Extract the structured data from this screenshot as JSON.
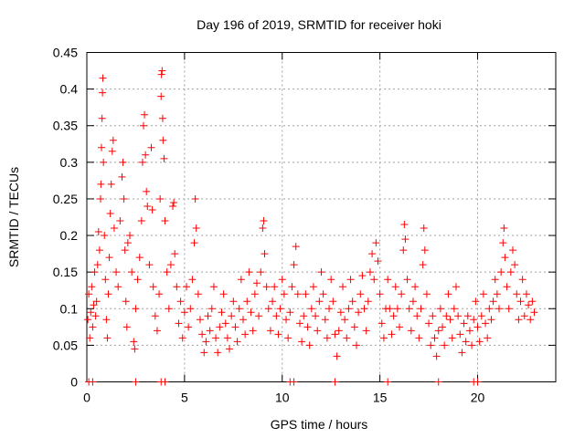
{
  "chart_data": {
    "type": "scatter",
    "title": "Day 196 of 2019, SRMTID for receiver hoki",
    "xlabel": "GPS time / hours",
    "ylabel": "SRMTID / TECUs",
    "xlim": [
      0,
      24
    ],
    "ylim": [
      0,
      0.45
    ],
    "x_ticks": [
      0,
      5,
      10,
      15,
      20
    ],
    "x_tick_labels": [
      "0",
      "5",
      "10",
      "15",
      "20"
    ],
    "y_ticks": [
      0,
      0.05,
      0.1,
      0.15,
      0.2,
      0.25,
      0.3,
      0.35,
      0.4,
      0.45
    ],
    "y_tick_labels": [
      "0",
      "0.05",
      "0.1",
      "0.15",
      "0.2",
      "0.25",
      "0.3",
      "0.35",
      "0.4",
      "0.45"
    ],
    "grid": true,
    "marker": "plus",
    "color": "#ff0000",
    "points": [
      [
        0.05,
        0.085
      ],
      [
        0.1,
        0.12
      ],
      [
        0.15,
        0.06
      ],
      [
        0.2,
        0.095
      ],
      [
        0.25,
        0.13
      ],
      [
        0.3,
        0.075
      ],
      [
        0.35,
        0.105
      ],
      [
        0.4,
        0.15
      ],
      [
        0.45,
        0.09
      ],
      [
        0.5,
        0.11
      ],
      [
        0.55,
        0.16
      ],
      [
        0.6,
        0.205
      ],
      [
        0.65,
        0.18
      ],
      [
        0.7,
        0.25
      ],
      [
        0.72,
        0.27
      ],
      [
        0.75,
        0.32
      ],
      [
        0.78,
        0.36
      ],
      [
        0.8,
        0.395
      ],
      [
        0.82,
        0.415
      ],
      [
        0.85,
        0.3
      ],
      [
        0.9,
        0.2
      ],
      [
        0.95,
        0.14
      ],
      [
        1.0,
        0.085
      ],
      [
        1.05,
        0.06
      ],
      [
        1.1,
        0.12
      ],
      [
        1.15,
        0.17
      ],
      [
        1.2,
        0.23
      ],
      [
        1.25,
        0.27
      ],
      [
        1.3,
        0.315
      ],
      [
        1.35,
        0.33
      ],
      [
        1.4,
        0.21
      ],
      [
        1.5,
        0.15
      ],
      [
        1.6,
        0.13
      ],
      [
        1.7,
        0.22
      ],
      [
        1.8,
        0.28
      ],
      [
        1.85,
        0.3
      ],
      [
        1.9,
        0.25
      ],
      [
        1.95,
        0.18
      ],
      [
        2.0,
        0.11
      ],
      [
        2.05,
        0.075
      ],
      [
        2.1,
        0.19
      ],
      [
        2.2,
        0.2
      ],
      [
        2.3,
        0.15
      ],
      [
        2.4,
        0.055
      ],
      [
        2.45,
        0.045
      ],
      [
        2.5,
        0.1
      ],
      [
        2.6,
        0.14
      ],
      [
        2.7,
        0.17
      ],
      [
        2.8,
        0.22
      ],
      [
        2.85,
        0.3
      ],
      [
        2.9,
        0.35
      ],
      [
        2.95,
        0.365
      ],
      [
        3.0,
        0.31
      ],
      [
        3.05,
        0.26
      ],
      [
        3.1,
        0.24
      ],
      [
        3.2,
        0.16
      ],
      [
        3.3,
        0.32
      ],
      [
        3.35,
        0.235
      ],
      [
        3.4,
        0.13
      ],
      [
        3.5,
        0.09
      ],
      [
        3.6,
        0.07
      ],
      [
        3.7,
        0.12
      ],
      [
        3.75,
        0.25
      ],
      [
        3.8,
        0.39
      ],
      [
        3.82,
        0.42
      ],
      [
        3.85,
        0.425
      ],
      [
        3.88,
        0.36
      ],
      [
        3.9,
        0.33
      ],
      [
        3.95,
        0.305
      ],
      [
        4.0,
        0.22
      ],
      [
        4.1,
        0.15
      ],
      [
        4.2,
        0.1
      ],
      [
        4.3,
        0.16
      ],
      [
        4.4,
        0.24
      ],
      [
        4.45,
        0.245
      ],
      [
        4.5,
        0.175
      ],
      [
        4.6,
        0.13
      ],
      [
        4.7,
        0.08
      ],
      [
        4.8,
        0.11
      ],
      [
        4.9,
        0.06
      ],
      [
        5.0,
        0.095
      ],
      [
        5.1,
        0.13
      ],
      [
        5.2,
        0.075
      ],
      [
        5.3,
        0.1
      ],
      [
        5.4,
        0.14
      ],
      [
        5.5,
        0.19
      ],
      [
        5.55,
        0.25
      ],
      [
        5.6,
        0.21
      ],
      [
        5.7,
        0.12
      ],
      [
        5.8,
        0.085
      ],
      [
        5.9,
        0.065
      ],
      [
        6.0,
        0.04
      ],
      [
        6.1,
        0.055
      ],
      [
        6.2,
        0.09
      ],
      [
        6.3,
        0.07
      ],
      [
        6.4,
        0.1
      ],
      [
        6.5,
        0.13
      ],
      [
        6.6,
        0.06
      ],
      [
        6.7,
        0.04
      ],
      [
        6.8,
        0.075
      ],
      [
        6.9,
        0.095
      ],
      [
        7.0,
        0.12
      ],
      [
        7.1,
        0.08
      ],
      [
        7.2,
        0.06
      ],
      [
        7.3,
        0.045
      ],
      [
        7.4,
        0.09
      ],
      [
        7.5,
        0.11
      ],
      [
        7.6,
        0.075
      ],
      [
        7.7,
        0.055
      ],
      [
        7.8,
        0.1
      ],
      [
        7.9,
        0.14
      ],
      [
        8.0,
        0.085
      ],
      [
        8.1,
        0.065
      ],
      [
        8.2,
        0.11
      ],
      [
        8.3,
        0.15
      ],
      [
        8.4,
        0.095
      ],
      [
        8.5,
        0.07
      ],
      [
        8.6,
        0.12
      ],
      [
        8.7,
        0.135
      ],
      [
        8.8,
        0.09
      ],
      [
        8.9,
        0.15
      ],
      [
        9.0,
        0.21
      ],
      [
        9.05,
        0.22
      ],
      [
        9.1,
        0.175
      ],
      [
        9.2,
        0.13
      ],
      [
        9.3,
        0.1
      ],
      [
        9.4,
        0.07
      ],
      [
        9.5,
        0.11
      ],
      [
        9.6,
        0.13
      ],
      [
        9.7,
        0.09
      ],
      [
        9.8,
        0.065
      ],
      [
        9.9,
        0.1
      ],
      [
        10.0,
        0.14
      ],
      [
        10.1,
        0.12
      ],
      [
        10.2,
        0.085
      ],
      [
        10.3,
        0.06
      ],
      [
        10.4,
        0.095
      ],
      [
        10.5,
        0.13
      ],
      [
        10.6,
        0.16
      ],
      [
        10.7,
        0.185
      ],
      [
        10.8,
        0.12
      ],
      [
        10.9,
        0.08
      ],
      [
        11.0,
        0.055
      ],
      [
        11.1,
        0.09
      ],
      [
        11.2,
        0.12
      ],
      [
        11.3,
        0.075
      ],
      [
        11.4,
        0.05
      ],
      [
        11.5,
        0.1
      ],
      [
        11.6,
        0.13
      ],
      [
        11.7,
        0.09
      ],
      [
        11.8,
        0.07
      ],
      [
        11.9,
        0.11
      ],
      [
        12.0,
        0.15
      ],
      [
        12.1,
        0.12
      ],
      [
        12.2,
        0.085
      ],
      [
        12.3,
        0.06
      ],
      [
        12.4,
        0.1
      ],
      [
        12.5,
        0.14
      ],
      [
        12.6,
        0.11
      ],
      [
        12.7,
        0.065
      ],
      [
        12.8,
        0.035
      ],
      [
        12.9,
        0.07
      ],
      [
        13.0,
        0.095
      ],
      [
        13.1,
        0.13
      ],
      [
        13.2,
        0.085
      ],
      [
        13.3,
        0.06
      ],
      [
        13.4,
        0.1
      ],
      [
        13.5,
        0.14
      ],
      [
        13.6,
        0.11
      ],
      [
        13.7,
        0.075
      ],
      [
        13.8,
        0.05
      ],
      [
        13.9,
        0.095
      ],
      [
        14.0,
        0.12
      ],
      [
        14.1,
        0.145
      ],
      [
        14.2,
        0.1
      ],
      [
        14.3,
        0.07
      ],
      [
        14.4,
        0.11
      ],
      [
        14.5,
        0.15
      ],
      [
        14.6,
        0.175
      ],
      [
        14.7,
        0.14
      ],
      [
        14.8,
        0.19
      ],
      [
        14.9,
        0.165
      ],
      [
        15.0,
        0.12
      ],
      [
        15.1,
        0.08
      ],
      [
        15.2,
        0.06
      ],
      [
        15.3,
        0.1
      ],
      [
        15.4,
        0.14
      ],
      [
        15.5,
        0.1
      ],
      [
        15.6,
        0.065
      ],
      [
        15.7,
        0.09
      ],
      [
        15.8,
        0.13
      ],
      [
        15.9,
        0.1
      ],
      [
        16.0,
        0.075
      ],
      [
        16.1,
        0.12
      ],
      [
        16.2,
        0.18
      ],
      [
        16.25,
        0.215
      ],
      [
        16.3,
        0.195
      ],
      [
        16.4,
        0.14
      ],
      [
        16.5,
        0.1
      ],
      [
        16.6,
        0.07
      ],
      [
        16.7,
        0.11
      ],
      [
        16.8,
        0.13
      ],
      [
        16.9,
        0.09
      ],
      [
        17.0,
        0.06
      ],
      [
        17.1,
        0.1
      ],
      [
        17.2,
        0.16
      ],
      [
        17.25,
        0.21
      ],
      [
        17.3,
        0.18
      ],
      [
        17.4,
        0.12
      ],
      [
        17.5,
        0.08
      ],
      [
        17.6,
        0.05
      ],
      [
        17.7,
        0.09
      ],
      [
        17.8,
        0.06
      ],
      [
        17.9,
        0.035
      ],
      [
        18.0,
        0.07
      ],
      [
        18.1,
        0.1
      ],
      [
        18.2,
        0.075
      ],
      [
        18.3,
        0.05
      ],
      [
        18.4,
        0.09
      ],
      [
        18.5,
        0.12
      ],
      [
        18.6,
        0.085
      ],
      [
        18.7,
        0.06
      ],
      [
        18.8,
        0.1
      ],
      [
        18.9,
        0.13
      ],
      [
        19.0,
        0.09
      ],
      [
        19.1,
        0.065
      ],
      [
        19.2,
        0.04
      ],
      [
        19.3,
        0.08
      ],
      [
        19.4,
        0.055
      ],
      [
        19.5,
        0.09
      ],
      [
        19.6,
        0.07
      ],
      [
        19.7,
        0.05
      ],
      [
        19.8,
        0.085
      ],
      [
        19.9,
        0.11
      ],
      [
        20.0,
        0.075
      ],
      [
        20.1,
        0.055
      ],
      [
        20.2,
        0.09
      ],
      [
        20.3,
        0.12
      ],
      [
        20.4,
        0.08
      ],
      [
        20.5,
        0.06
      ],
      [
        20.6,
        0.1
      ],
      [
        20.7,
        0.085
      ],
      [
        20.8,
        0.11
      ],
      [
        20.9,
        0.14
      ],
      [
        21.0,
        0.12
      ],
      [
        21.1,
        0.1
      ],
      [
        21.2,
        0.15
      ],
      [
        21.3,
        0.19
      ],
      [
        21.35,
        0.21
      ],
      [
        21.4,
        0.17
      ],
      [
        21.5,
        0.13
      ],
      [
        21.6,
        0.1
      ],
      [
        21.7,
        0.15
      ],
      [
        21.8,
        0.18
      ],
      [
        21.9,
        0.16
      ],
      [
        22.0,
        0.12
      ],
      [
        22.1,
        0.085
      ],
      [
        22.2,
        0.11
      ],
      [
        22.3,
        0.14
      ],
      [
        22.4,
        0.09
      ],
      [
        22.5,
        0.12
      ],
      [
        22.6,
        0.105
      ],
      [
        22.7,
        0.085
      ],
      [
        22.8,
        0.11
      ],
      [
        22.9,
        0.095
      ],
      [
        0.1,
        0
      ],
      [
        0.3,
        0
      ],
      [
        2.5,
        0
      ],
      [
        3.8,
        0
      ],
      [
        4.0,
        0
      ],
      [
        10.4,
        0
      ],
      [
        10.6,
        0
      ],
      [
        12.7,
        0
      ],
      [
        15.4,
        0
      ],
      [
        18.0,
        0
      ],
      [
        19.8,
        0
      ],
      [
        20.0,
        0
      ]
    ],
    "cloud_note": ""
  }
}
